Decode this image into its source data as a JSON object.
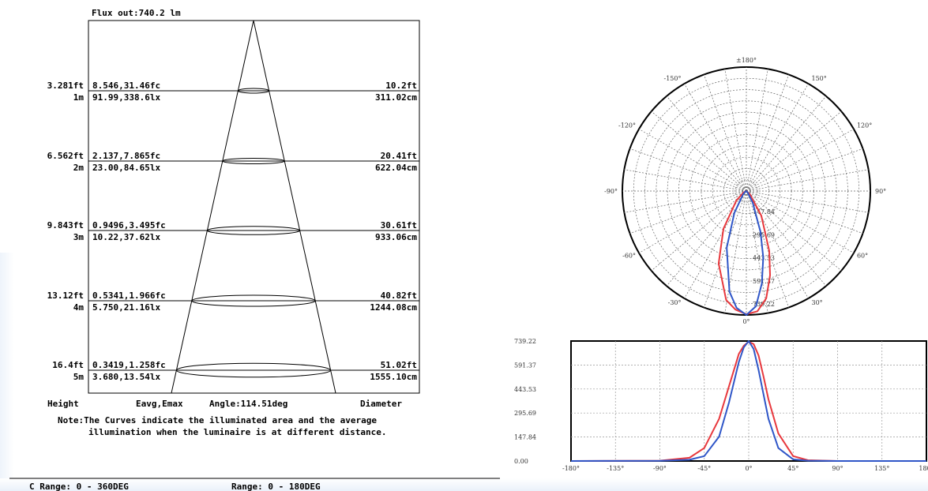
{
  "colors": {
    "red": "#e8383d",
    "blue": "#2f56c8"
  },
  "cone": {
    "flux": "Flux out:740.2 lm",
    "rows": [
      {
        "height_ft": "3.281ft",
        "height_m": "1m",
        "eavg_fc": "8.546,31.46fc",
        "eavg_lx": "91.99,338.6lx",
        "diam_ft": "10.2ft",
        "diam_cm": "311.02cm"
      },
      {
        "height_ft": "6.562ft",
        "height_m": "2m",
        "eavg_fc": "2.137,7.865fc",
        "eavg_lx": "23.00,84.65lx",
        "diam_ft": "20.41ft",
        "diam_cm": "622.04cm"
      },
      {
        "height_ft": "9.843ft",
        "height_m": "3m",
        "eavg_fc": "0.9496,3.495fc",
        "eavg_lx": "10.22,37.62lx",
        "diam_ft": "30.61ft",
        "diam_cm": "933.06cm"
      },
      {
        "height_ft": "13.12ft",
        "height_m": "4m",
        "eavg_fc": "0.5341,1.966fc",
        "eavg_lx": "5.750,21.16lx",
        "diam_ft": "40.82ft",
        "diam_cm": "1244.08cm"
      },
      {
        "height_ft": "16.4ft",
        "height_m": "5m",
        "eavg_fc": "0.3419,1.258fc",
        "eavg_lx": "3.680,13.54lx",
        "diam_ft": "51.02ft",
        "diam_cm": "1555.10cm"
      }
    ],
    "footer_height": "Height",
    "footer_eavg": "Eavg,Emax",
    "footer_angle": "Angle:114.51deg",
    "footer_diameter": "Diameter",
    "note_line1": "Note:The Curves indicate the illuminated area and the average",
    "note_line2": "illumination when the luminaire is at different distance.",
    "bottom_left": "C Range:  0 - 360DEG",
    "bottom_right": "Range:  0 - 180DEG"
  },
  "polar": {
    "angle_labels": [
      "±180°",
      "-150°",
      "150°",
      "-120°",
      "120°",
      "-90°",
      "90°",
      "-60°",
      "60°",
      "-30°",
      "30°",
      "0°"
    ],
    "radial_labels": [
      "147.84",
      "295.69",
      "443.53",
      "591.37",
      "739.22"
    ]
  },
  "chart_data": [
    {
      "type": "line",
      "title": "",
      "xlabel": "",
      "ylabel": "",
      "x_ticks": [
        "-180°",
        "-135°",
        "-90°",
        "-45°",
        "0°",
        "45°",
        "90°",
        "135°",
        "180°"
      ],
      "y_ticks": [
        "739.22",
        "591.37",
        "443.53",
        "295.69",
        "147.84",
        "0.00"
      ],
      "xlim": [
        -180,
        180
      ],
      "ylim": [
        0,
        739.22
      ],
      "grid": true,
      "series": [
        {
          "color": "#e8383d",
          "x": [
            -180,
            -90,
            -60,
            -45,
            -30,
            -20,
            -10,
            -5,
            0,
            5,
            10,
            15,
            20,
            30,
            45,
            60,
            90,
            180
          ],
          "y": [
            0,
            2,
            20,
            80,
            260,
            460,
            660,
            710,
            735,
            720,
            650,
            520,
            380,
            170,
            30,
            5,
            0,
            0
          ]
        },
        {
          "color": "#2f56c8",
          "x": [
            -180,
            -90,
            -60,
            -45,
            -30,
            -20,
            -10,
            -5,
            0,
            5,
            10,
            15,
            20,
            30,
            45,
            60,
            90,
            180
          ],
          "y": [
            0,
            1,
            8,
            30,
            150,
            360,
            610,
            700,
            739,
            690,
            560,
            410,
            260,
            80,
            10,
            2,
            0,
            0
          ]
        }
      ]
    }
  ]
}
